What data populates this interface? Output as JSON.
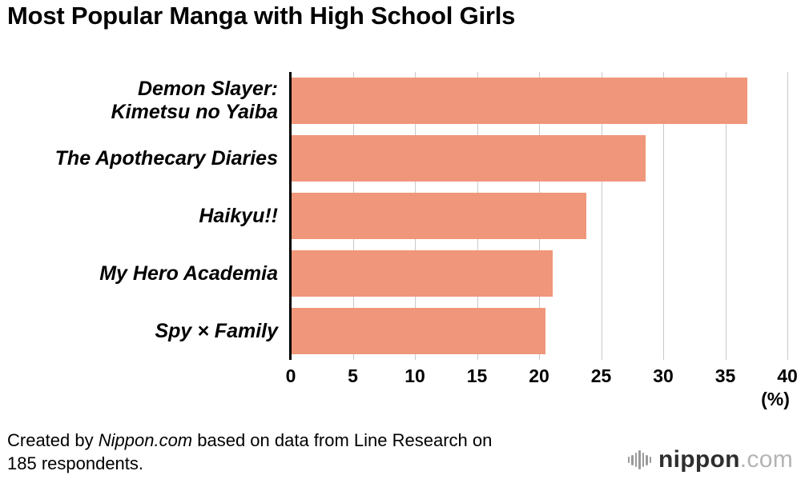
{
  "title": "Most Popular Manga with High School Girls",
  "chart_data": {
    "type": "bar",
    "orientation": "horizontal",
    "title": "Most Popular Manga with High School Girls",
    "categories": [
      "Demon Slayer:\nKimetsu no Yaiba",
      "The Apothecary Diaries",
      "Haikyu!!",
      "My Hero Academia",
      "Spy × Family"
    ],
    "values": [
      36.8,
      28.6,
      23.8,
      21.1,
      20.5
    ],
    "xlim": [
      0,
      40
    ],
    "xticks": [
      0,
      5,
      10,
      15,
      20,
      25,
      30,
      35,
      40
    ],
    "x_unit_label": "(%)",
    "xlabel": "",
    "ylabel": "",
    "grid": true,
    "legend": "none",
    "bar_color": "#F0967A",
    "gridline_color": "#c9c9c9",
    "axis_color": "#000000"
  },
  "footer": {
    "prefix": "Created by ",
    "brand": "Nippon.com",
    "suffix": " based on data from Line Research on",
    "line2": "185 respondents."
  },
  "logo": {
    "name": "nippon",
    "tld": ".com"
  }
}
